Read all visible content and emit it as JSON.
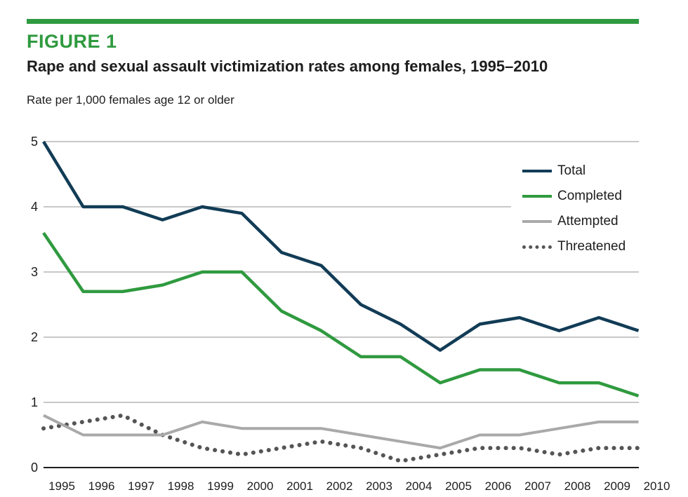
{
  "figure": {
    "label": "FIGURE 1",
    "title": "Rape and sexual assault victimization rates among females, 1995–2010",
    "y_caption": "Rate per 1,000 females age 12 or older"
  },
  "colors": {
    "accent": "#2f9a3f",
    "total": "#123c56",
    "completed": "#2f9a3f",
    "attempted": "#a9a9a9",
    "threatened": "#555555",
    "grid": "#c8c8c8"
  },
  "chart_data": {
    "type": "line",
    "title": "Rape and sexual assault victimization rates among females, 1995–2010",
    "ylabel": "Rate per 1,000 females age 12 or older",
    "xlabel": "",
    "ylim": [
      0,
      5
    ],
    "yticks": [
      0,
      1,
      2,
      3,
      4,
      5
    ],
    "grid": true,
    "legend_position": "top-right",
    "categories": [
      "1995",
      "1996",
      "1997",
      "1998",
      "1999",
      "2000",
      "2001",
      "2002",
      "2003",
      "2004",
      "2005",
      "2006",
      "2007",
      "2008",
      "2009",
      "2010"
    ],
    "series": [
      {
        "name": "Total",
        "style": "solid",
        "color": "#123c56",
        "values": [
          5.0,
          4.0,
          4.0,
          3.8,
          4.0,
          3.9,
          3.3,
          3.1,
          2.5,
          2.2,
          1.8,
          2.2,
          2.3,
          2.1,
          2.3,
          2.1
        ]
      },
      {
        "name": "Completed",
        "style": "solid",
        "color": "#2f9a3f",
        "values": [
          3.6,
          2.7,
          2.7,
          2.8,
          3.0,
          3.0,
          2.4,
          2.1,
          1.7,
          1.7,
          1.3,
          1.5,
          1.5,
          1.3,
          1.3,
          1.1
        ]
      },
      {
        "name": "Attempted",
        "style": "solid",
        "color": "#a9a9a9",
        "values": [
          0.8,
          0.5,
          0.5,
          0.5,
          0.7,
          0.6,
          0.6,
          0.6,
          0.5,
          0.4,
          0.3,
          0.5,
          0.5,
          0.6,
          0.7,
          0.7
        ]
      },
      {
        "name": "Threatened",
        "style": "dotted",
        "color": "#555555",
        "values": [
          0.6,
          0.7,
          0.8,
          0.5,
          0.3,
          0.2,
          0.3,
          0.4,
          0.3,
          0.1,
          0.2,
          0.3,
          0.3,
          0.2,
          0.3,
          0.3
        ]
      }
    ]
  }
}
